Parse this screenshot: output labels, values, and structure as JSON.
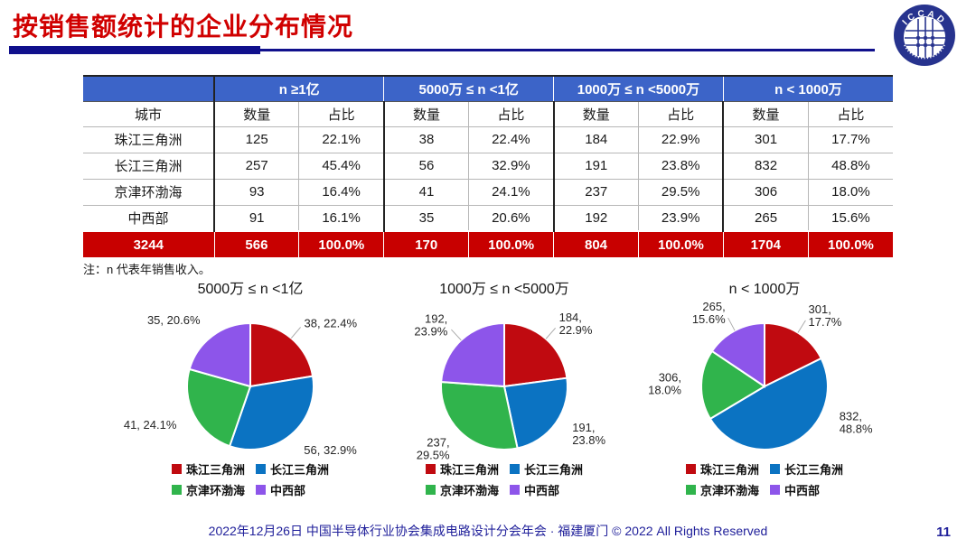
{
  "slide": {
    "title": "按销售额统计的企业分布情况",
    "logo_text": "ICCAD",
    "note": "注：n 代表年销售收入。",
    "footer": "2022年12月26日 中国半导体行业协会集成电路设计分会年会 · 福建厦门 © 2022 All Rights Reserved",
    "page_number": "11"
  },
  "colors": {
    "title_red": "#d00000",
    "divider_navy": "#10108c",
    "header_blue": "#3c64c8",
    "total_row_red": "#c80000",
    "footer_navy": "#21219b",
    "series": [
      "#c00a10",
      "#0b73c2",
      "#30b44c",
      "#8d55ea"
    ]
  },
  "table": {
    "city_header": "城市",
    "group_headers": [
      "n ≥1亿",
      "5000万 ≤ n <1亿",
      "1000万 ≤ n <5000万",
      "n < 1000万"
    ],
    "sub_headers": [
      "数量",
      "占比"
    ],
    "rows": [
      {
        "city": "珠江三角洲",
        "values": [
          "125",
          "22.1%",
          "38",
          "22.4%",
          "184",
          "22.9%",
          "301",
          "17.7%"
        ]
      },
      {
        "city": "长江三角洲",
        "values": [
          "257",
          "45.4%",
          "56",
          "32.9%",
          "191",
          "23.8%",
          "832",
          "48.8%"
        ]
      },
      {
        "city": "京津环渤海",
        "values": [
          "93",
          "16.4%",
          "41",
          "24.1%",
          "237",
          "29.5%",
          "306",
          "18.0%"
        ]
      },
      {
        "city": "中西部",
        "values": [
          "91",
          "16.1%",
          "35",
          "20.6%",
          "192",
          "23.9%",
          "265",
          "15.6%"
        ]
      }
    ],
    "total_row": {
      "city": "3244",
      "values": [
        "566",
        "100.0%",
        "170",
        "100.0%",
        "804",
        "100.0%",
        "1704",
        "100.0%"
      ]
    }
  },
  "legend": {
    "labels": [
      "珠江三角洲",
      "长江三角洲",
      "京津环渤海",
      "中西部"
    ]
  },
  "chart_data": [
    {
      "type": "pie",
      "title": "5000万 ≤ n <1亿",
      "categories": [
        "珠江三角洲",
        "长江三角洲",
        "京津环渤海",
        "中西部"
      ],
      "values": [
        38,
        56,
        41,
        35
      ],
      "percents": [
        22.4,
        32.9,
        24.1,
        20.6
      ],
      "labels": [
        [
          "38, 22.4%"
        ],
        [
          "56, 32.9%"
        ],
        [
          "41, 24.1%"
        ],
        [
          "35, 20.6%"
        ]
      ],
      "start_angle_deg": 0,
      "direction": "clockwise",
      "label_leaders": [
        0
      ],
      "legend_position": "bottom"
    },
    {
      "type": "pie",
      "title": "1000万 ≤ n <5000万",
      "categories": [
        "珠江三角洲",
        "长江三角洲",
        "京津环渤海",
        "中西部"
      ],
      "values": [
        184,
        191,
        237,
        192
      ],
      "percents": [
        22.9,
        23.8,
        29.5,
        23.9
      ],
      "labels": [
        [
          "184,",
          "22.9%"
        ],
        [
          "191,",
          "23.8%"
        ],
        [
          "237,",
          "29.5%"
        ],
        [
          "192,",
          "23.9%"
        ]
      ],
      "start_angle_deg": 0,
      "direction": "clockwise",
      "label_leaders": [
        0,
        3
      ],
      "legend_position": "bottom"
    },
    {
      "type": "pie",
      "title": "n < 1000万",
      "categories": [
        "珠江三角洲",
        "长江三角洲",
        "京津环渤海",
        "中西部"
      ],
      "values": [
        301,
        832,
        306,
        265
      ],
      "percents": [
        17.7,
        48.8,
        18.0,
        15.6
      ],
      "labels": [
        [
          "301,",
          "17.7%"
        ],
        [
          "832,",
          "48.8%"
        ],
        [
          "306,",
          "18.0%"
        ],
        [
          "265,",
          "15.6%"
        ]
      ],
      "start_angle_deg": 0,
      "direction": "clockwise",
      "label_leaders": [
        0,
        3
      ],
      "label_dirs_deg": [
        null,
        116,
        null,
        null
      ],
      "legend_position": "bottom"
    }
  ]
}
